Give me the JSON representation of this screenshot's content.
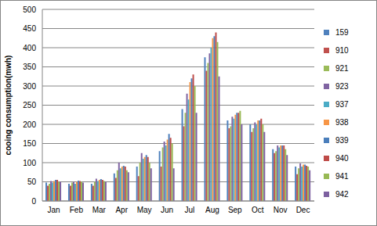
{
  "chart_data": {
    "type": "bar",
    "y_label": "cooing consumption(mwh)",
    "categories": [
      "Jan",
      "Feb",
      "Mar",
      "Apr",
      "May",
      "Jun",
      "Jul",
      "Aug",
      "Sep",
      "Oct",
      "Nov",
      "Dec"
    ],
    "series": [
      {
        "name": "159",
        "color": "#4F81BD",
        "values": [
          48,
          45,
          45,
          72,
          90,
          130,
          240,
          375,
          210,
          200,
          135,
          90
        ]
      },
      {
        "name": "910",
        "color": "#C0504D",
        "values": [
          40,
          40,
          40,
          60,
          65,
          90,
          195,
          340,
          190,
          180,
          125,
          70
        ]
      },
      {
        "name": "921",
        "color": "#9BBB59",
        "values": [
          45,
          48,
          50,
          80,
          100,
          140,
          230,
          360,
          195,
          190,
          130,
          85
        ]
      },
      {
        "name": "923",
        "color": "#8064A2",
        "values": [
          52,
          50,
          58,
          100,
          125,
          155,
          280,
          385,
          220,
          205,
          145,
          98
        ]
      },
      {
        "name": "937",
        "color": "#4BACC6",
        "values": [
          48,
          45,
          52,
          85,
          110,
          145,
          265,
          400,
          215,
          200,
          140,
          90
        ]
      },
      {
        "name": "938",
        "color": "#F79646",
        "values": [
          52,
          50,
          55,
          90,
          115,
          160,
          310,
          425,
          225,
          210,
          145,
          95
        ]
      },
      {
        "name": "939",
        "color": "#4A7EBB",
        "values": [
          55,
          53,
          57,
          92,
          120,
          175,
          320,
          430,
          230,
          210,
          145,
          95
        ]
      },
      {
        "name": "940",
        "color": "#BE4B48",
        "values": [
          55,
          52,
          55,
          90,
          115,
          165,
          330,
          440,
          230,
          215,
          145,
          92
        ]
      },
      {
        "name": "941",
        "color": "#98B954",
        "values": [
          50,
          50,
          52,
          80,
          100,
          150,
          300,
          415,
          235,
          200,
          135,
          90
        ]
      },
      {
        "name": "942",
        "color": "#7D60A0",
        "values": [
          50,
          48,
          50,
          75,
          85,
          85,
          230,
          325,
          200,
          180,
          120,
          80
        ]
      }
    ],
    "ylim": [
      0,
      500
    ],
    "yticks": [
      0,
      50,
      100,
      150,
      200,
      250,
      300,
      350,
      400,
      450,
      500
    ],
    "grid": true,
    "legend": "right"
  }
}
